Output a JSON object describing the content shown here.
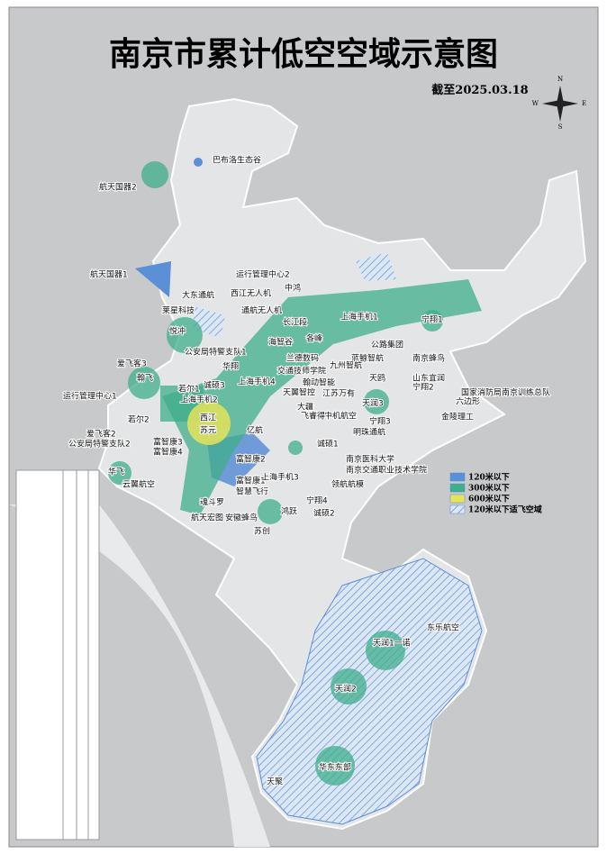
{
  "header": {
    "title": "南京市累计低空空域示意图",
    "date": "截至2025.03.18"
  },
  "compass": [
    "N",
    "S",
    "W",
    "E"
  ],
  "legend": [
    "120米以下",
    "300米以下",
    "600米以下",
    "120米以下适飞空域"
  ],
  "map": {
    "labels": [
      "巴布洛生态谷",
      "航天国器2",
      "航天国器1",
      "运行管理中心2",
      "大东通航",
      "西江无人机",
      "中鸿",
      "通航无人机",
      "长江段",
      "宁翔1",
      "上海手机1",
      "莱星科技",
      "悦冲",
      "公安局特警支队1",
      "华翔",
      "爱飞客3",
      "翰飞",
      "运行管理中心1",
      "若尔1",
      "上海手机2",
      "诚硕3",
      "若尔2",
      "西江",
      "苏元",
      "爱飞客2",
      "公安局特警支队2",
      "富智康3",
      "富智康4",
      "华飞",
      "云翼航空",
      "魂斗罗",
      "航天宏图",
      "智慧飞行",
      "富智康1",
      "上海手机3",
      "苏创",
      "安徽蜂鸟",
      "鸿跃",
      "诚硕2",
      "宁翔4",
      "领航航模",
      "南京医科大学",
      "南京交通职业技术学院",
      "明珠通航",
      "诚硕1",
      "国家消防局南京训练总队",
      "六边形",
      "金陵理工",
      "宁翔3",
      "天润3",
      "天鸥",
      "南京蜂鸟",
      "山东宜润",
      "宁翔2",
      "公路集团",
      "蓝鲸智航",
      "九州智航",
      "各峰",
      "海智谷",
      "兰德数码",
      "交通技师学院",
      "翰动智能",
      "天翼智控",
      "江苏万有",
      "中机航空",
      "飞睿得",
      "东乐航空",
      "天润1一诺",
      "天润2",
      "华东东部",
      "天聚",
      "上海手机4",
      "富智康2",
      "亿航",
      "大疆"
    ]
  }
}
